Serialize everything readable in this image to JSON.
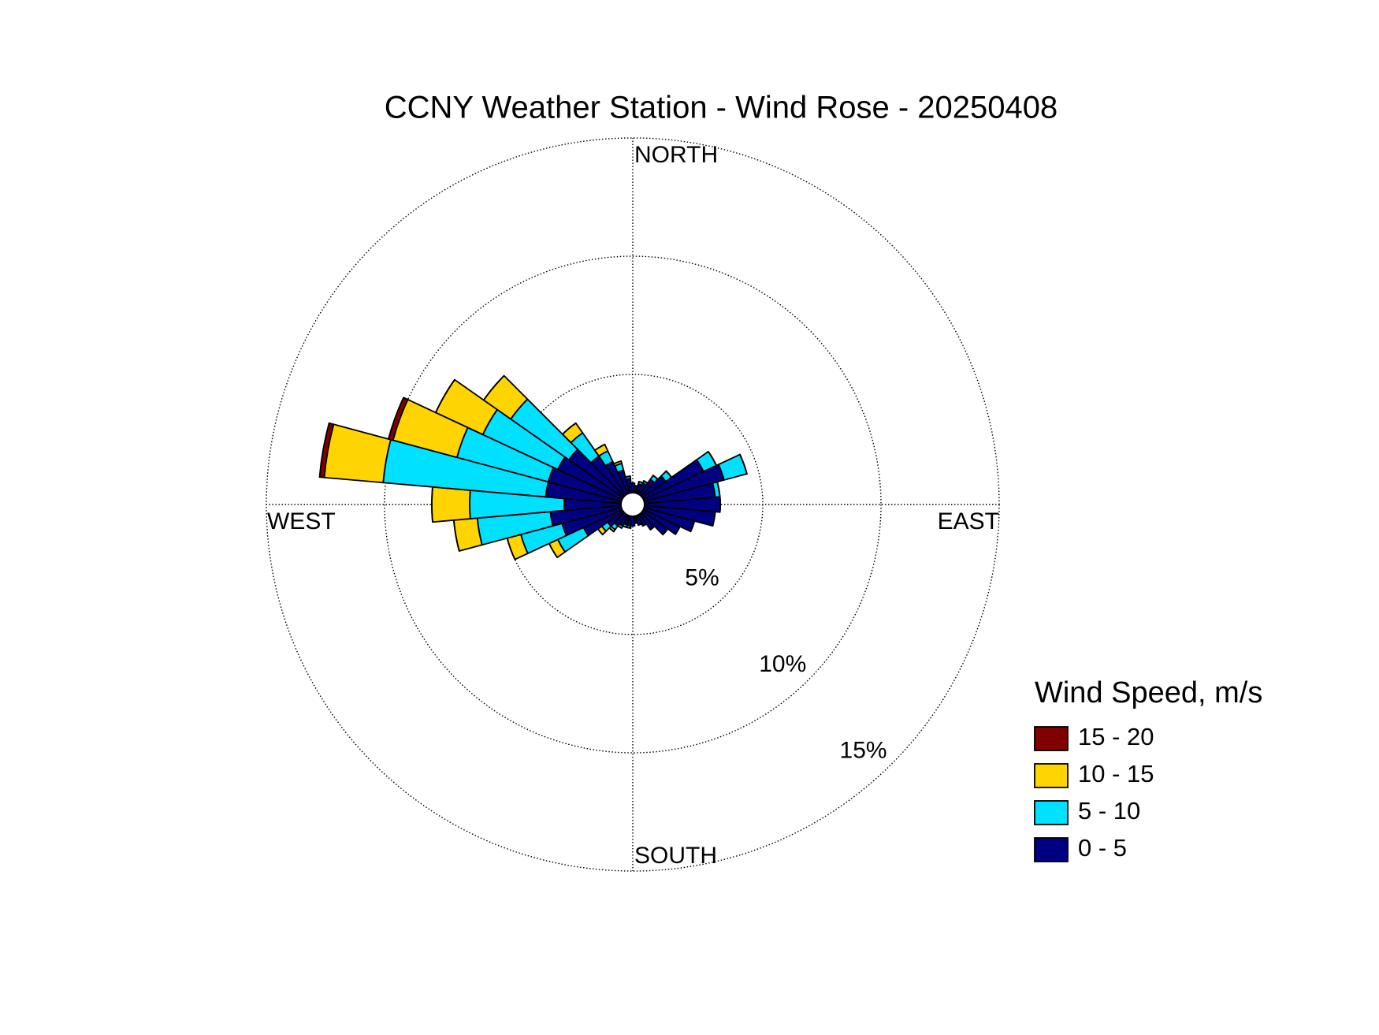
{
  "chart_data": {
    "type": "windrose",
    "title": "CCNY Weather Station - Wind Rose - 20250408",
    "direction_labels": [
      "NORTH",
      "EAST",
      "SOUTH",
      "WEST"
    ],
    "legend_title": "Wind Speed, m/s",
    "x": [
      0,
      10,
      20,
      30,
      40,
      50,
      60,
      70,
      80,
      90,
      100,
      110,
      120,
      130,
      140,
      150,
      160,
      170,
      180,
      190,
      200,
      210,
      220,
      230,
      240,
      250,
      260,
      270,
      280,
      290,
      300,
      310,
      320,
      330,
      340,
      350
    ],
    "series": [
      {
        "name": "0 - 5",
        "color": "#000080",
        "values": [
          0.4,
          0.3,
          0.4,
          0.5,
          0.8,
          1.2,
          2.8,
          3.5,
          3.0,
          3.2,
          3.0,
          2.2,
          1.7,
          1.3,
          0.8,
          0.5,
          0.4,
          0.3,
          0.4,
          0.4,
          0.4,
          0.5,
          0.6,
          0.8,
          1.8,
          2.6,
          3.0,
          2.4,
          3.2,
          3.2,
          3.0,
          2.8,
          2.0,
          1.5,
          1.0,
          0.6
        ]
      },
      {
        "name": "5 - 10",
        "color": "#00e1ff",
        "values": [
          0,
          0,
          0.1,
          0.1,
          0.2,
          0.3,
          0.6,
          1.0,
          0.2,
          0,
          0,
          0,
          0,
          0,
          0,
          0,
          0,
          0,
          0,
          0.1,
          0.1,
          0.1,
          0.2,
          0.3,
          1.2,
          1.8,
          3.1,
          4.0,
          6.9,
          4.0,
          3.5,
          3.0,
          1.2,
          0.5,
          0.3,
          0.1
        ]
      },
      {
        "name": "10 - 15",
        "color": "#ffd400",
        "values": [
          0,
          0,
          0,
          0,
          0,
          0,
          0,
          0,
          0,
          0,
          0,
          0,
          0,
          0,
          0,
          0,
          0,
          0,
          0,
          0,
          0,
          0,
          0.1,
          0.2,
          0.4,
          0.6,
          1.0,
          1.6,
          2.5,
          2.8,
          2.2,
          1.4,
          0.5,
          0.3,
          0.1,
          0
        ]
      },
      {
        "name": "15 - 20",
        "color": "#800000",
        "values": [
          0,
          0,
          0,
          0,
          0,
          0,
          0,
          0,
          0,
          0,
          0,
          0,
          0,
          0,
          0,
          0,
          0,
          0,
          0,
          0,
          0,
          0,
          0,
          0,
          0,
          0,
          0,
          0,
          0.2,
          0.2,
          0,
          0,
          0,
          0,
          0,
          0
        ]
      }
    ],
    "rlim": [
      0,
      15
    ],
    "rticks": [
      {
        "value": 5,
        "label": "5%"
      },
      {
        "value": 10,
        "label": "10%"
      },
      {
        "value": 15,
        "label": "15%"
      }
    ],
    "grid": true
  }
}
